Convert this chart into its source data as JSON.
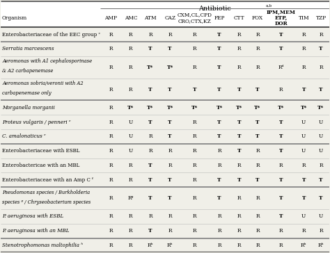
{
  "title": "Antibiotic",
  "title_superscript": "a,b",
  "rows": [
    {
      "organism": "Enterobacteriaceae of the EEC group ᶜ",
      "italic": false,
      "values": [
        "R",
        "R",
        "R",
        "R",
        "R",
        "T",
        "R",
        "R",
        "T",
        "R",
        "R"
      ],
      "group_sep_above": true
    },
    {
      "organism": "Serratia marcescens",
      "italic": true,
      "values": [
        "R",
        "R",
        "T",
        "T",
        "R",
        "T",
        "R",
        "R",
        "T",
        "R",
        "T"
      ],
      "group_sep_above": true
    },
    {
      "organism": "Aeromonas with A1 cephalosporinase\n& A2 carbapenemase",
      "italic": true,
      "values": [
        "R",
        "R",
        "T*",
        "T*",
        "R",
        "T",
        "R",
        "R",
        "Rᵈ",
        "R",
        "R"
      ],
      "group_sep_above": false
    },
    {
      "organism": "Aeromonas sobria/veronii with A2\ncarbapenemase only",
      "italic": true,
      "values": [
        "R",
        "R",
        "T",
        "T",
        "T",
        "T",
        "T",
        "T",
        "R",
        "T",
        "T"
      ],
      "group_sep_above": false
    },
    {
      "organism": "Morganella morganii",
      "italic": true,
      "values": [
        "R",
        "T*",
        "T*",
        "T*",
        "T*",
        "T*",
        "T*",
        "T*",
        "T*",
        "T*",
        "T*"
      ],
      "group_sep_above": true
    },
    {
      "organism": "Proteus vulgaris / penneri ᵉ",
      "italic": true,
      "values": [
        "R",
        "U",
        "T",
        "T",
        "R",
        "T",
        "T",
        "T",
        "T",
        "U",
        "U"
      ],
      "group_sep_above": false
    },
    {
      "organism": "C. amalonaticus ᵉ",
      "italic": true,
      "values": [
        "R",
        "U",
        "R",
        "T",
        "R",
        "T",
        "T",
        "T",
        "T",
        "U",
        "U"
      ],
      "group_sep_above": false
    },
    {
      "organism": "Enterobacteriaceae with ESBL",
      "italic": false,
      "values": [
        "R",
        "U",
        "R",
        "R",
        "R",
        "R",
        "T",
        "R",
        "T",
        "U",
        "U"
      ],
      "group_sep_above": true
    },
    {
      "organism": "Enterobactericae with an MBL",
      "italic": false,
      "values": [
        "R",
        "R",
        "T",
        "R",
        "R",
        "R",
        "R",
        "R",
        "R",
        "R",
        "R"
      ],
      "group_sep_above": false
    },
    {
      "organism": "Enterobacteriaceae with an Amp C ᶠ",
      "italic": false,
      "values": [
        "R",
        "R",
        "T",
        "T",
        "R",
        "T",
        "T",
        "T",
        "T",
        "T",
        "T"
      ],
      "group_sep_above": false
    },
    {
      "organism": "Pseudomonas species / Burkholderia\nspecies ᵍ / Chryseobacterium species",
      "italic": true,
      "values": [
        "R",
        "Rᵍ",
        "T",
        "T",
        "R",
        "T",
        "R",
        "R",
        "T",
        "T",
        "T"
      ],
      "group_sep_above": true
    },
    {
      "organism": "P. aeruginosa with ESBL",
      "italic": true,
      "values": [
        "R",
        "R",
        "R",
        "R",
        "R",
        "R",
        "R",
        "R",
        "T",
        "U",
        "U"
      ],
      "group_sep_above": false
    },
    {
      "organism": "P. aeruginosa with an MBL",
      "italic": true,
      "values": [
        "R",
        "R",
        "T",
        "R",
        "R",
        "R",
        "R",
        "R",
        "R",
        "R",
        "R"
      ],
      "group_sep_above": false
    },
    {
      "organism": "Stenotrophomonas maltophilia ʰ",
      "italic": true,
      "values": [
        "R",
        "R",
        "Rʰ",
        "Rʰ",
        "R",
        "R",
        "R",
        "R",
        "R",
        "Rʰ",
        "Rʰ"
      ],
      "group_sep_above": true
    }
  ],
  "bg_color": "#f0efe8",
  "thick_line_color": "#555555",
  "thin_line_color": "#bbbbbb",
  "thick_sep_color": "#888888"
}
